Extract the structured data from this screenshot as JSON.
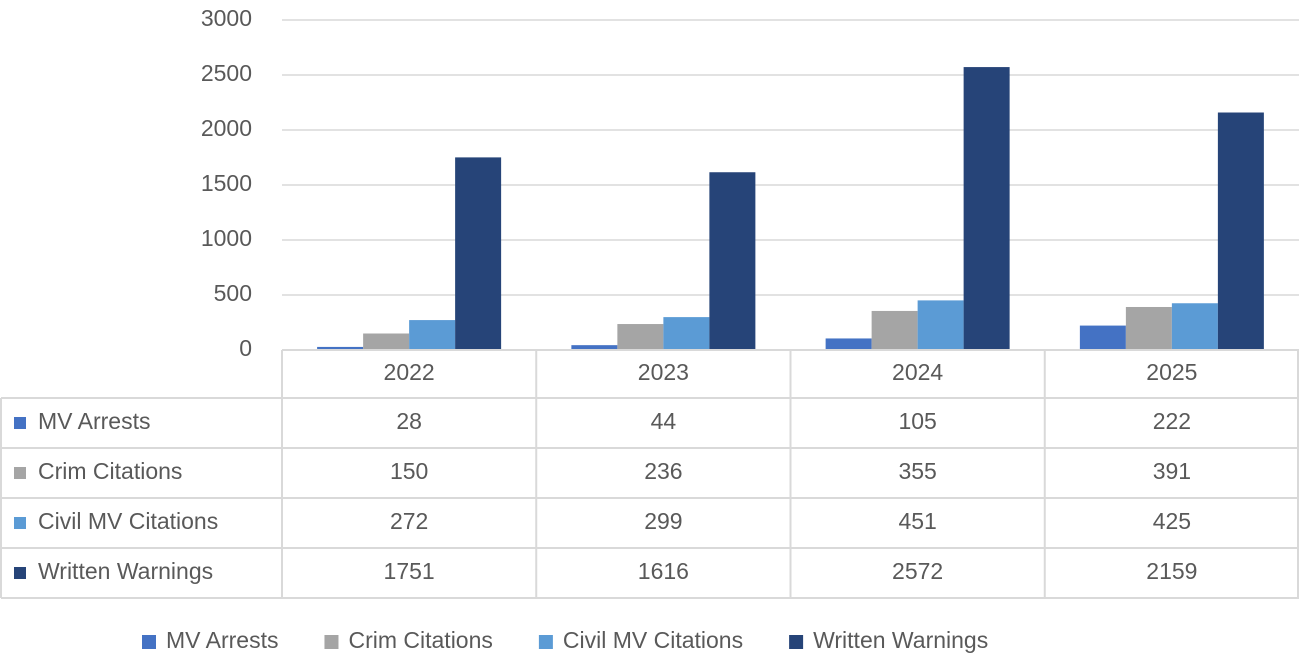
{
  "chart_data": {
    "type": "bar",
    "categories": [
      "2022",
      "2023",
      "2024",
      "2025"
    ],
    "series": [
      {
        "name": "MV Arrests",
        "color": "#4472c4",
        "values": [
          28,
          44,
          105,
          222
        ]
      },
      {
        "name": "Crim Citations",
        "color": "#a5a5a5",
        "values": [
          150,
          236,
          355,
          391
        ]
      },
      {
        "name": "Civil MV Citations",
        "color": "#5b9bd5",
        "values": [
          272,
          299,
          451,
          425
        ]
      },
      {
        "name": "Written Warnings",
        "color": "#264478",
        "values": [
          1751,
          1616,
          2572,
          2159
        ]
      }
    ],
    "ylim": [
      0,
      3000
    ],
    "yticks": [
      0,
      500,
      1000,
      1500,
      2000,
      2500,
      3000
    ],
    "grid": true,
    "legend": "bottom",
    "data_table": true
  }
}
